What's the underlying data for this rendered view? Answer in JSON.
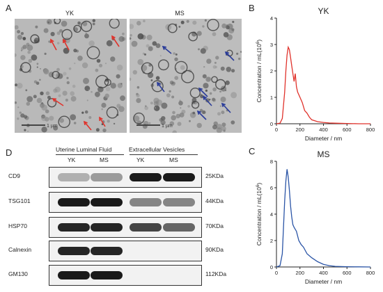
{
  "panel_a": {
    "letter": "A",
    "images": [
      {
        "title": "YK",
        "scale_label": "1 µm",
        "arrow_color": "#e0322b"
      },
      {
        "title": "MS",
        "scale_label": "1 µm",
        "arrow_color": "#2a3c99"
      }
    ]
  },
  "panel_d": {
    "letter": "D",
    "group_headers": [
      "Uterine Luminal Fluid",
      "Extracellular Vesicles"
    ],
    "lanes": [
      "YK",
      "MS",
      "YK",
      "MS"
    ],
    "rows": [
      {
        "label": "CD9",
        "kda": "25KDa",
        "intensity": [
          0.25,
          0.35,
          0.95,
          0.95
        ]
      },
      {
        "label": "TSG101",
        "kda": "44KDa",
        "intensity": [
          0.95,
          0.95,
          0.45,
          0.45
        ]
      },
      {
        "label": "HSP70",
        "kda": "70KDa",
        "intensity": [
          0.9,
          0.9,
          0.75,
          0.6
        ]
      },
      {
        "label": "Calnexin",
        "kda": "90KDa",
        "intensity": [
          0.9,
          0.9,
          0.0,
          0.0
        ]
      },
      {
        "label": "GM130",
        "kda": "112KDa",
        "intensity": [
          0.95,
          0.95,
          0.0,
          0.0
        ]
      }
    ]
  },
  "chart_data": [
    {
      "panel_letter": "B",
      "type": "line",
      "title": "YK",
      "xlabel": "Diameter / nm",
      "ylabel": "Concentration / mL(10",
      "ylabel_sup": "6",
      "ylabel_end": ")",
      "xlim": [
        0,
        800
      ],
      "ylim": [
        0,
        4
      ],
      "xticks": [
        "0",
        "200",
        "400",
        "600",
        "800"
      ],
      "yticks": [
        "0",
        "1",
        "2",
        "3",
        "4"
      ],
      "color": "#e0322b",
      "x": [
        0,
        30,
        50,
        70,
        80,
        90,
        100,
        110,
        120,
        130,
        140,
        150,
        160,
        170,
        180,
        200,
        220,
        240,
        260,
        280,
        300,
        350,
        400,
        450,
        500,
        600,
        700,
        800
      ],
      "y": [
        0,
        0.02,
        0.2,
        1.2,
        2.0,
        2.6,
        2.9,
        2.8,
        2.5,
        2.2,
        1.9,
        1.6,
        1.9,
        1.4,
        1.2,
        1.0,
        0.8,
        0.5,
        0.4,
        0.25,
        0.15,
        0.08,
        0.05,
        0.03,
        0.02,
        0.01,
        0.0,
        0.0
      ]
    },
    {
      "panel_letter": "C",
      "type": "line",
      "title": "MS",
      "xlabel": "Diameter / nm",
      "ylabel": "Concentration / mL(10",
      "ylabel_sup": "6",
      "ylabel_end": ")",
      "xlim": [
        0,
        800
      ],
      "ylim": [
        0,
        8
      ],
      "xticks": [
        "0",
        "200",
        "400",
        "600",
        "800"
      ],
      "yticks": [
        "0",
        "2",
        "4",
        "6",
        "8"
      ],
      "color": "#2a54a6",
      "x": [
        0,
        30,
        50,
        60,
        70,
        80,
        90,
        100,
        110,
        120,
        130,
        140,
        150,
        170,
        190,
        210,
        230,
        260,
        300,
        350,
        400,
        450,
        500,
        600,
        700,
        800
      ],
      "y": [
        0,
        0.1,
        1.0,
        3.0,
        5.0,
        6.5,
        7.4,
        6.8,
        5.8,
        4.6,
        3.8,
        3.2,
        3.0,
        2.7,
        2.0,
        1.7,
        1.5,
        1.0,
        0.7,
        0.4,
        0.2,
        0.1,
        0.05,
        0.02,
        0.01,
        0.0
      ]
    }
  ]
}
